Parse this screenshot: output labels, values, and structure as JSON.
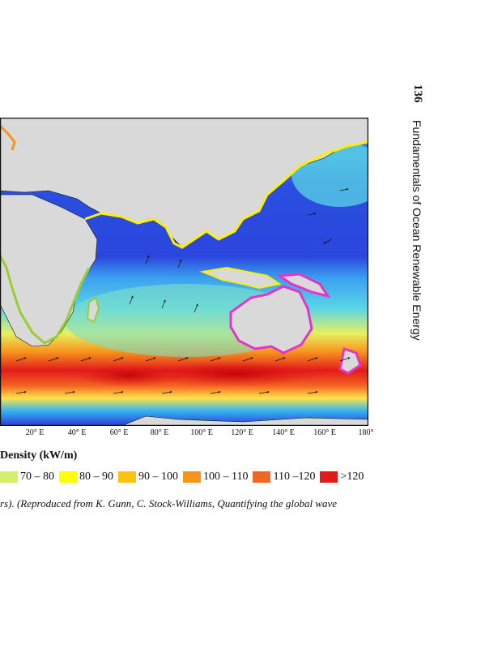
{
  "running_head": {
    "page_number": "136",
    "book_title": "Fundamentals of Ocean Renewable Energy"
  },
  "map": {
    "x_axis_ticks": [
      "20° E",
      "40° E",
      "60° E",
      "80° E",
      "100° E",
      "120° E",
      "140° E",
      "160° E",
      "180°"
    ],
    "colors": {
      "ocean_low": "#2a3bd9",
      "ocean_mid": "#38b6f0",
      "ocean_high": "#e31a1c",
      "land": "#d9d9d9",
      "coast_yellow": "#ffef00",
      "coast_green": "#9acd32",
      "coast_magenta": "#e534c8",
      "coast_orange": "#f7941d"
    }
  },
  "legend": {
    "title": "Density (kW/m)",
    "items": [
      {
        "label": "70 – 80",
        "color": "#d4f06a"
      },
      {
        "label": "80 – 90",
        "color": "#ffff00"
      },
      {
        "label": "90 – 100",
        "color": "#ffc20e"
      },
      {
        "label": "100 – 110",
        "color": "#f7941d"
      },
      {
        "label": "110 –120",
        "color": "#f26522"
      },
      {
        "label": ">120",
        "color": "#e31a1c"
      }
    ]
  },
  "caption": {
    "text": "rs). (Reproduced from K. Gunn, C. Stock-Williams, Quantifying the global wave"
  }
}
